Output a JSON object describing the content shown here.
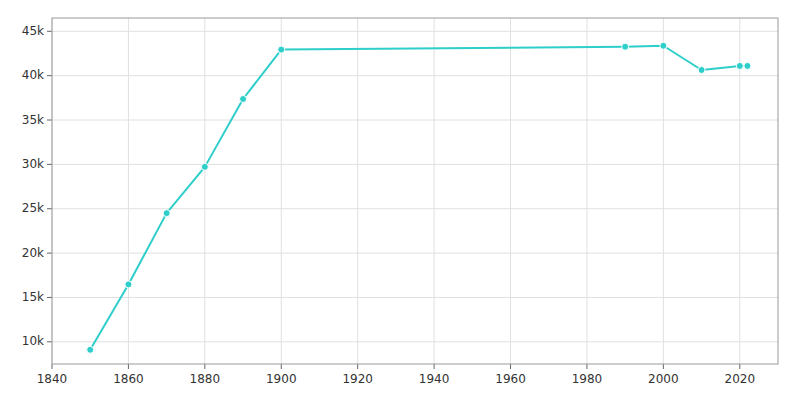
{
  "chart_data": {
    "type": "line",
    "x": [
      1850,
      1860,
      1870,
      1880,
      1890,
      1900,
      1990,
      2000,
      2010,
      2020,
      2022
    ],
    "values": [
      9102,
      16471,
      24505,
      29720,
      37371,
      42938,
      43264,
      43370,
      40640,
      41098,
      41100
    ],
    "color": "#2ececa",
    "marker": "circle",
    "xlim": [
      1840,
      2030
    ],
    "ylim": [
      7500,
      46500
    ],
    "xticks": [
      1840,
      1860,
      1880,
      1900,
      1920,
      1940,
      1960,
      1980,
      2000,
      2020
    ],
    "yticks": [
      {
        "value": 10000,
        "label": "10k"
      },
      {
        "value": 15000,
        "label": "15k"
      },
      {
        "value": 20000,
        "label": "20k"
      },
      {
        "value": 25000,
        "label": "25k"
      },
      {
        "value": 30000,
        "label": "30k"
      },
      {
        "value": 35000,
        "label": "35k"
      },
      {
        "value": 40000,
        "label": "40k"
      },
      {
        "value": 45000,
        "label": "45k"
      }
    ],
    "grid": true
  }
}
